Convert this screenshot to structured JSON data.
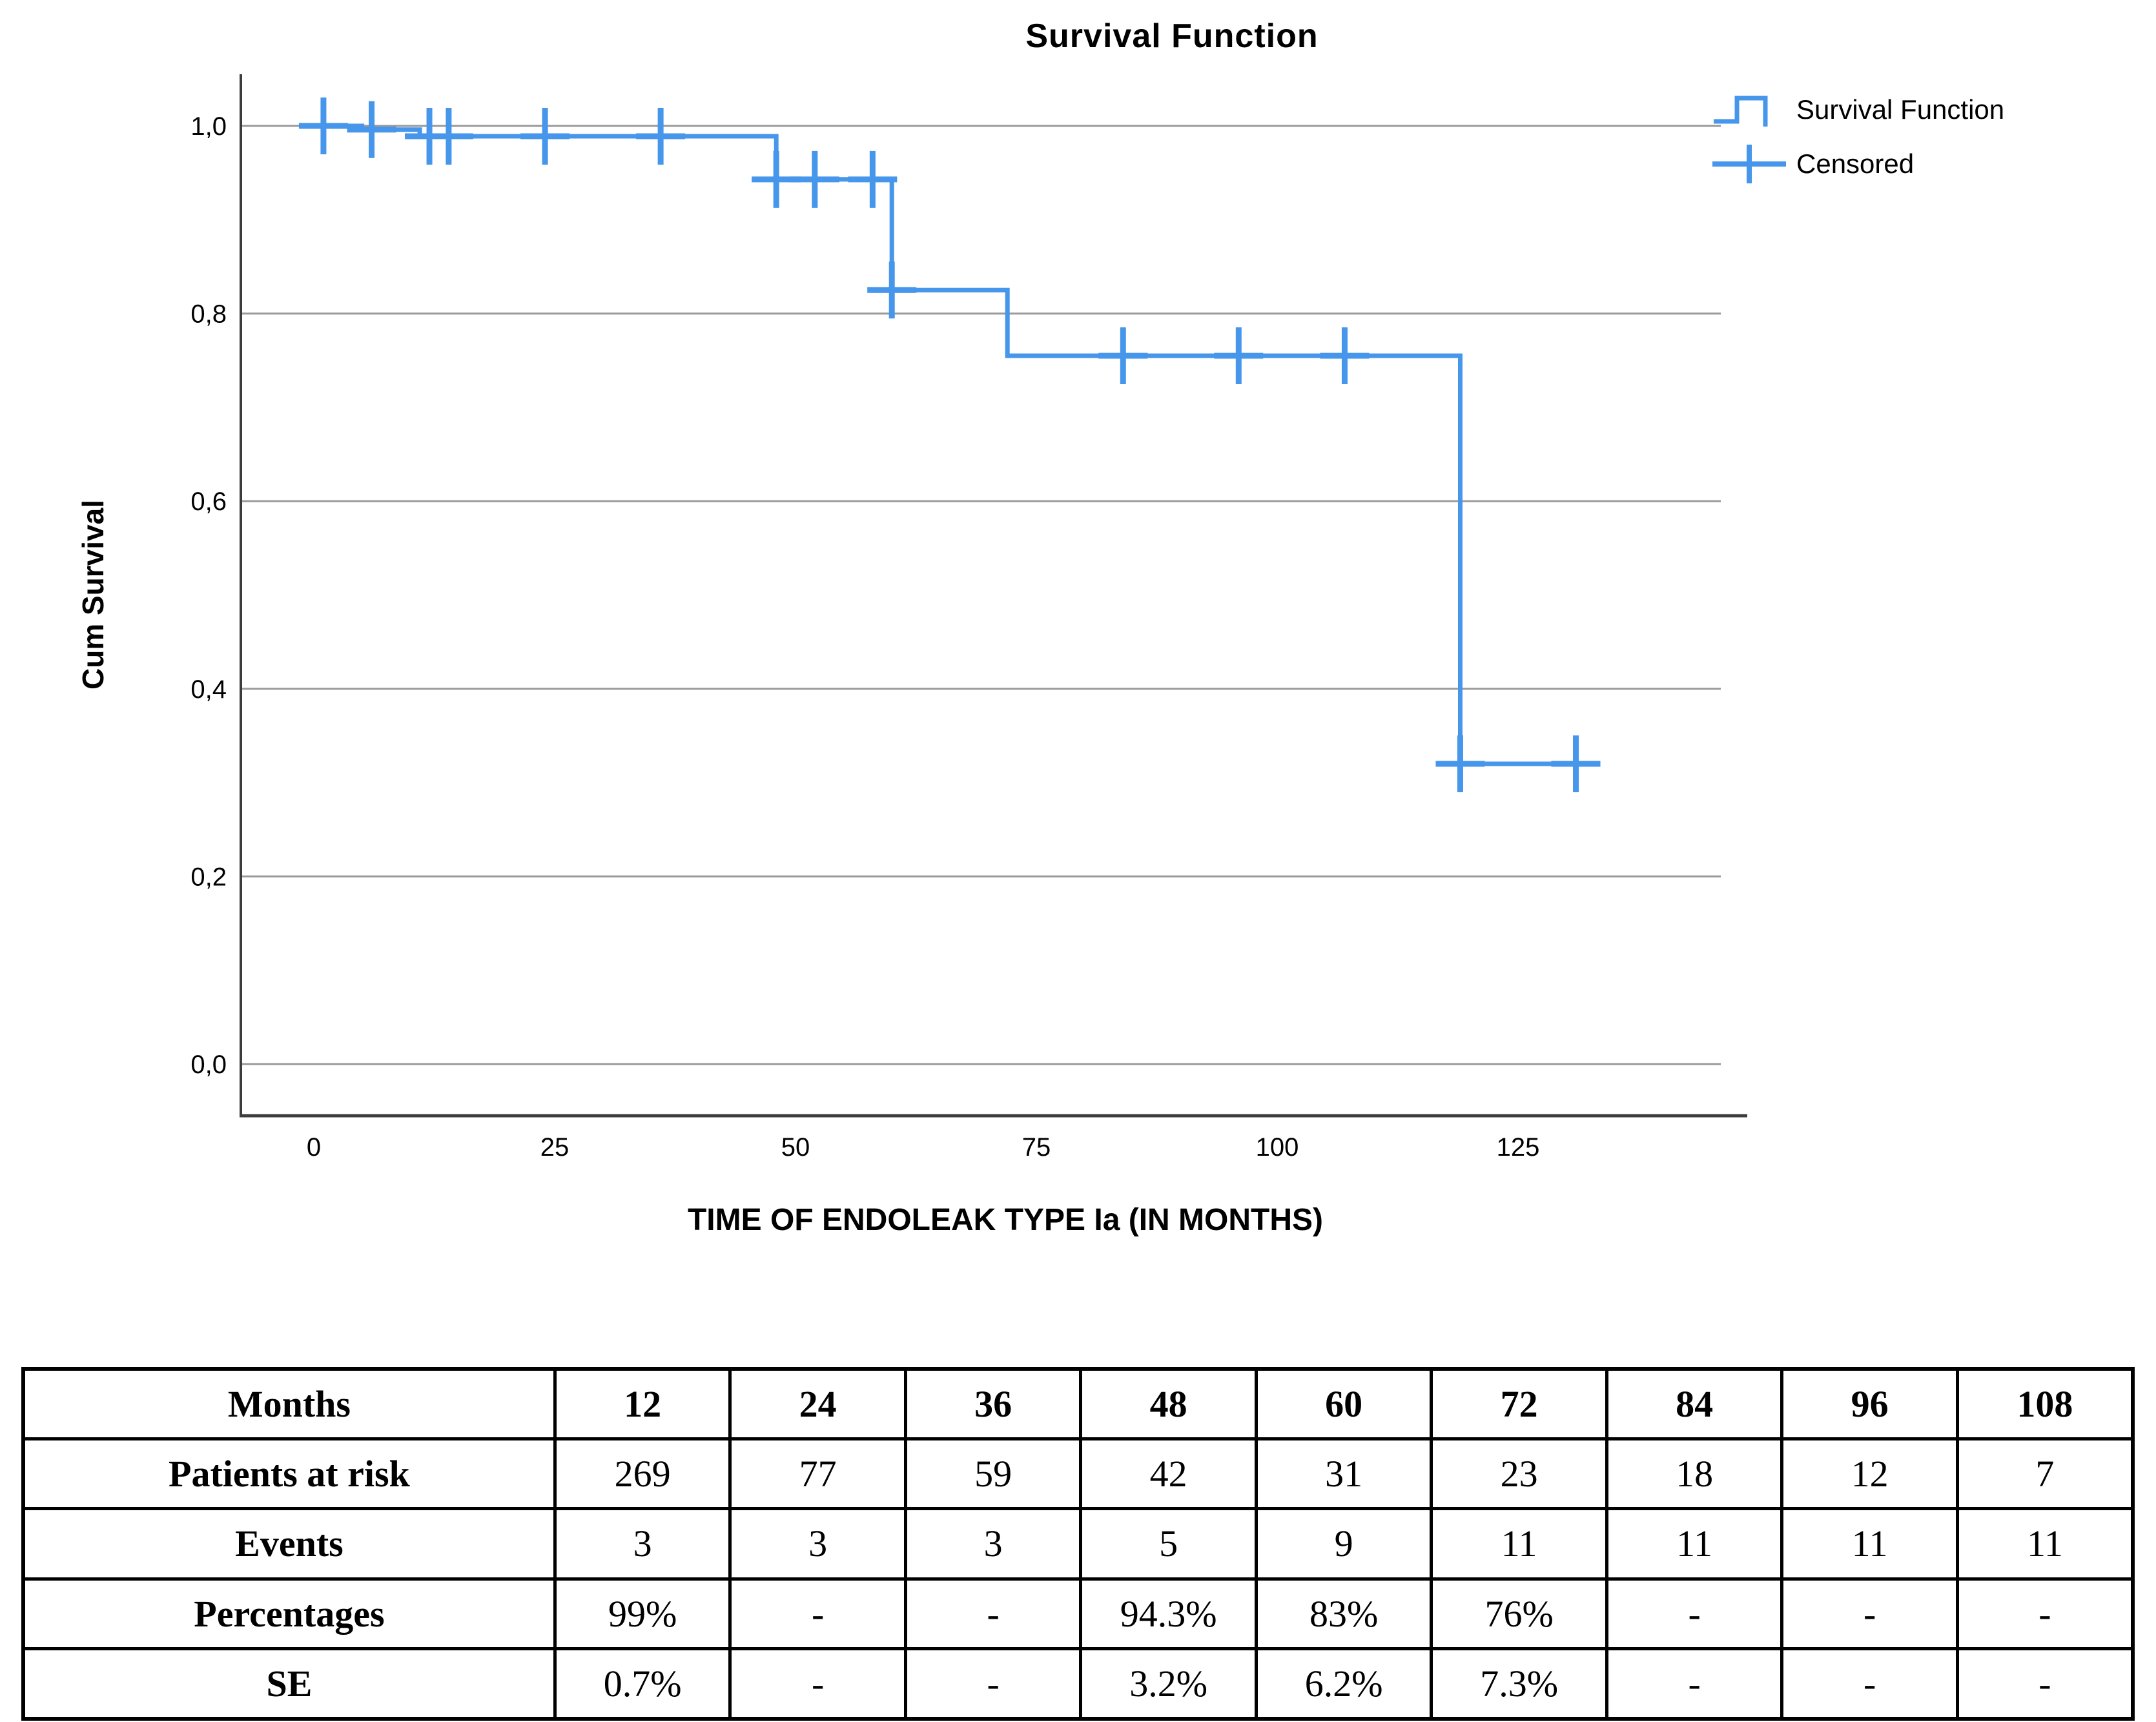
{
  "chart": {
    "title": "Survival Function",
    "x_axis": {
      "label": "TIME OF ENDOLEAK TYPE Ia (IN MONTHS)",
      "tick_labels": [
        "0",
        "25",
        "50",
        "75",
        "100",
        "125"
      ],
      "tick_values": [
        0,
        25,
        50,
        75,
        100,
        125
      ]
    },
    "y_axis": {
      "label": "Cum Survival",
      "tick_labels": [
        "1,0",
        "0,8",
        "0,6",
        "0,4",
        "0,2",
        "0,0"
      ],
      "tick_values": [
        1.0,
        0.8,
        0.6,
        0.4,
        0.2,
        0.0
      ]
    },
    "legend": [
      {
        "label": "Survival Function",
        "marker": "step-line"
      },
      {
        "label": "Censored",
        "marker": "plus"
      }
    ],
    "colors": {
      "series": "#4696EB",
      "grid": "#9A9A9A",
      "axis": "#3C3C3C",
      "text": "#000000"
    }
  },
  "chart_data": {
    "type": "line",
    "step": true,
    "title": "Survival Function",
    "xlabel": "TIME OF ENDOLEAK TYPE Ia (IN MONTHS)",
    "ylabel": "Cum Survival",
    "xlim": [
      -8,
      149
    ],
    "ylim": [
      0,
      1.04
    ],
    "grid": "horizontal",
    "legend_position": "top-right",
    "series": [
      {
        "name": "Survival Function",
        "points": [
          [
            0,
            1.0
          ],
          [
            5,
            1.0
          ],
          [
            5,
            0.996
          ],
          [
            11,
            0.996
          ],
          [
            11,
            0.989
          ],
          [
            48,
            0.989
          ],
          [
            48,
            0.943
          ],
          [
            60,
            0.943
          ],
          [
            60,
            0.825
          ],
          [
            72,
            0.825
          ],
          [
            72,
            0.755
          ],
          [
            119,
            0.755
          ],
          [
            119,
            0.32
          ],
          [
            132,
            0.32
          ]
        ]
      }
    ],
    "censored": [
      [
        1,
        1.0
      ],
      [
        6,
        0.996
      ],
      [
        12,
        0.989
      ],
      [
        14,
        0.989
      ],
      [
        24,
        0.989
      ],
      [
        36,
        0.989
      ],
      [
        48,
        0.943
      ],
      [
        52,
        0.943
      ],
      [
        58,
        0.943
      ],
      [
        60,
        0.825
      ],
      [
        84,
        0.755
      ],
      [
        96,
        0.755
      ],
      [
        107,
        0.755
      ],
      [
        119,
        0.32
      ],
      [
        131,
        0.32
      ]
    ]
  },
  "table": {
    "header_row": [
      "Months",
      "12",
      "24",
      "36",
      "48",
      "60",
      "72",
      "84",
      "96",
      "108"
    ],
    "rows": [
      [
        "Patients at risk",
        "269",
        "77",
        "59",
        "42",
        "31",
        "23",
        "18",
        "12",
        "7"
      ],
      [
        "Events",
        "3",
        "3",
        "3",
        "5",
        "9",
        "11",
        "11",
        "11",
        "11"
      ],
      [
        "Percentages",
        "99%",
        "-",
        "-",
        "94.3%",
        "83%",
        "76%",
        "-",
        "-",
        "-"
      ],
      [
        "SE",
        "0.7%",
        "-",
        "-",
        "3.2%",
        "6.2%",
        "7.3%",
        "-",
        "-",
        "-"
      ]
    ]
  }
}
